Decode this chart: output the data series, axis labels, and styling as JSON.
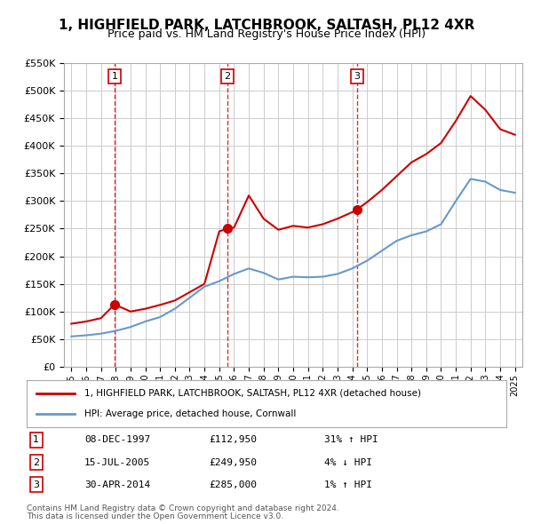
{
  "title": "1, HIGHFIELD PARK, LATCHBROOK, SALTASH, PL12 4XR",
  "subtitle": "Price paid vs. HM Land Registry's House Price Index (HPI)",
  "ylabel_ticks": [
    "£0",
    "£50K",
    "£100K",
    "£150K",
    "£200K",
    "£250K",
    "£300K",
    "£350K",
    "£400K",
    "£450K",
    "£500K",
    "£550K"
  ],
  "ylim": [
    0,
    550000
  ],
  "xlim": [
    1994.5,
    2025.5
  ],
  "sale_dates": [
    1997.92,
    2005.54,
    2014.33
  ],
  "sale_prices": [
    112950,
    249950,
    285000
  ],
  "sale_labels": [
    "1",
    "2",
    "3"
  ],
  "sale_date_strs": [
    "08-DEC-1997",
    "15-JUL-2005",
    "30-APR-2014"
  ],
  "sale_price_strs": [
    "£112,950",
    "£249,950",
    "£285,000"
  ],
  "sale_hpi_strs": [
    "31% ↑ HPI",
    "4% ↓ HPI",
    "1% ↑ HPI"
  ],
  "hpi_years": [
    1995,
    1996,
    1997,
    1998,
    1999,
    2000,
    2001,
    2002,
    2003,
    2004,
    2005,
    2006,
    2007,
    2008,
    2009,
    2010,
    2011,
    2012,
    2013,
    2014,
    2015,
    2016,
    2017,
    2018,
    2019,
    2020,
    2021,
    2022,
    2023,
    2024,
    2025
  ],
  "hpi_values": [
    55000,
    57000,
    60000,
    65000,
    72000,
    82000,
    90000,
    105000,
    125000,
    145000,
    155000,
    168000,
    178000,
    170000,
    158000,
    163000,
    162000,
    163000,
    168000,
    178000,
    192000,
    210000,
    228000,
    238000,
    245000,
    258000,
    300000,
    340000,
    335000,
    320000,
    315000
  ],
  "red_years": [
    1995,
    1996,
    1997,
    1997.92,
    1999,
    2000,
    2001,
    2002,
    2003,
    2004,
    2005,
    2005.54,
    2006,
    2007,
    2008,
    2009,
    2010,
    2011,
    2012,
    2013,
    2014,
    2014.33,
    2015,
    2016,
    2017,
    2018,
    2019,
    2020,
    2021,
    2022,
    2023,
    2024,
    2025
  ],
  "red_values": [
    78000,
    82000,
    88000,
    112950,
    100000,
    105000,
    112000,
    120000,
    135000,
    150000,
    245000,
    249950,
    252000,
    310000,
    268000,
    248000,
    255000,
    252000,
    258000,
    268000,
    280000,
    285000,
    298000,
    320000,
    345000,
    370000,
    385000,
    405000,
    445000,
    490000,
    465000,
    430000,
    420000
  ],
  "legend_line1": "1, HIGHFIELD PARK, LATCHBROOK, SALTASH, PL12 4XR (detached house)",
  "legend_line2": "HPI: Average price, detached house, Cornwall",
  "footer1": "Contains HM Land Registry data © Crown copyright and database right 2024.",
  "footer2": "This data is licensed under the Open Government Licence v3.0.",
  "line_color_red": "#cc0000",
  "line_color_blue": "#6699cc",
  "bg_color": "#ffffff",
  "grid_color": "#cccccc"
}
